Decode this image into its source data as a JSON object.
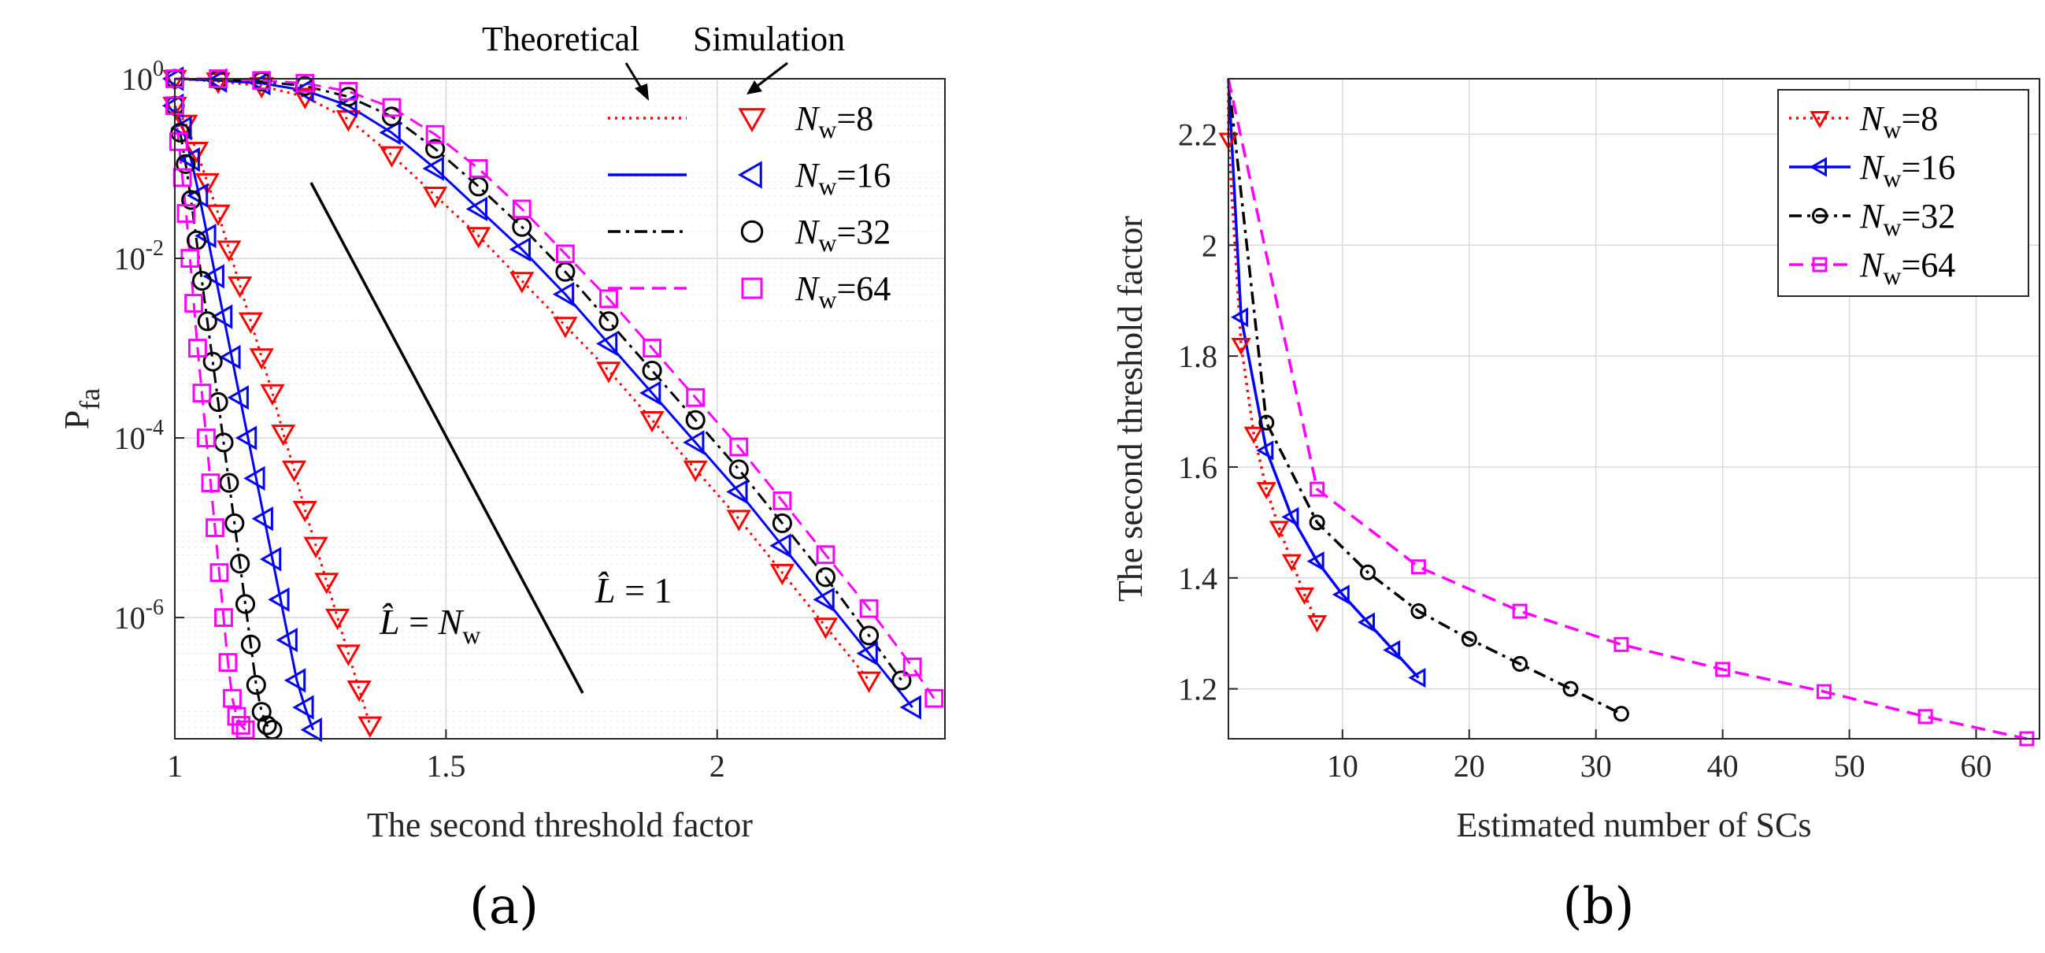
{
  "figure": {
    "panel_a_label": "(a)",
    "panel_b_label": "(b)"
  },
  "chart_data": [
    {
      "type": "line",
      "title": "",
      "xlabel": "The second threshold factor",
      "ylabel": "P",
      "ylabel_sub": "fa",
      "xlim": [
        1,
        2.42
      ],
      "ylim_log10": [
        -7.35,
        0
      ],
      "x_ticks": [
        "1",
        "1.5",
        "2"
      ],
      "x_tick_values": [
        1,
        1.5,
        2
      ],
      "y_ticks": [
        {
          "base": "10",
          "exp": "-6",
          "value": -6
        },
        {
          "base": "10",
          "exp": "-4",
          "value": -4
        },
        {
          "base": "10",
          "exp": "-2",
          "value": -2
        },
        {
          "base": "10",
          "exp": "0",
          "value": 0
        }
      ],
      "legend_header": {
        "theoretical": "Theoretical",
        "simulation": "Simulation"
      },
      "annotations": {
        "L_hat_Nw": {
          "lhs": "L̂",
          "eq": " = ",
          "rhs": "N",
          "rhs_sub": "w"
        },
        "L_hat_1": {
          "lhs": "L̂",
          "eq": " = ",
          "rhs": "1"
        }
      },
      "legend": [
        {
          "label_main": "N",
          "label_sub": "w",
          "label_tail": "=8",
          "color": "#ff0000",
          "marker": "triangle-down",
          "dash": "dotted"
        },
        {
          "label_main": "N",
          "label_sub": "w",
          "label_tail": "=16",
          "color": "#0000ff",
          "marker": "triangle-left",
          "dash": "solid"
        },
        {
          "label_main": "N",
          "label_sub": "w",
          "label_tail": "=32",
          "color": "#000000",
          "marker": "circle",
          "dash": "dashdot"
        },
        {
          "label_main": "N",
          "label_sub": "w",
          "label_tail": "=64",
          "color": "#ff00ff",
          "marker": "square",
          "dash": "dashed"
        }
      ],
      "series": [
        {
          "name": "Lhat=Nw, Nw=8",
          "group": "Lhat=Nw",
          "color": "#ff0000",
          "marker": "triangle-down",
          "dash": "dotted",
          "x": [
            1.0,
            1.02,
            1.04,
            1.06,
            1.08,
            1.1,
            1.12,
            1.14,
            1.16,
            1.18,
            1.2,
            1.22,
            1.24,
            1.26,
            1.28,
            1.3,
            1.32,
            1.34,
            1.36
          ],
          "log10y": [
            -0.3,
            -0.5,
            -0.8,
            -1.15,
            -1.5,
            -1.9,
            -2.3,
            -2.7,
            -3.1,
            -3.5,
            -3.95,
            -4.35,
            -4.8,
            -5.2,
            -5.6,
            -6.0,
            -6.4,
            -6.8,
            -7.2
          ]
        },
        {
          "name": "Lhat=Nw, Nw=16",
          "group": "Lhat=Nw",
          "color": "#0000ff",
          "marker": "triangle-left",
          "dash": "solid",
          "x": [
            1.0,
            1.015,
            1.03,
            1.045,
            1.06,
            1.075,
            1.09,
            1.105,
            1.12,
            1.135,
            1.15,
            1.165,
            1.18,
            1.195,
            1.21,
            1.225,
            1.24,
            1.255
          ],
          "log10y": [
            -0.3,
            -0.55,
            -0.9,
            -1.3,
            -1.75,
            -2.2,
            -2.65,
            -3.1,
            -3.55,
            -4.0,
            -4.45,
            -4.9,
            -5.35,
            -5.8,
            -6.25,
            -6.7,
            -7.0,
            -7.25
          ]
        },
        {
          "name": "Lhat=Nw, Nw=32",
          "group": "Lhat=Nw",
          "color": "#000000",
          "marker": "circle",
          "dash": "dashdot",
          "x": [
            1.0,
            1.01,
            1.02,
            1.03,
            1.04,
            1.05,
            1.06,
            1.07,
            1.08,
            1.09,
            1.1,
            1.11,
            1.12,
            1.13,
            1.14,
            1.15,
            1.16,
            1.17,
            1.18
          ],
          "log10y": [
            -0.3,
            -0.6,
            -0.95,
            -1.35,
            -1.8,
            -2.25,
            -2.7,
            -3.15,
            -3.6,
            -4.05,
            -4.5,
            -4.95,
            -5.4,
            -5.85,
            -6.3,
            -6.75,
            -7.05,
            -7.2,
            -7.25
          ]
        },
        {
          "name": "Lhat=Nw, Nw=64",
          "group": "Lhat=Nw",
          "color": "#ff00ff",
          "marker": "square",
          "dash": "dashed",
          "x": [
            1.0,
            1.007,
            1.014,
            1.021,
            1.028,
            1.035,
            1.042,
            1.05,
            1.058,
            1.066,
            1.074,
            1.082,
            1.09,
            1.098,
            1.106,
            1.114,
            1.122,
            1.13
          ],
          "log10y": [
            -0.3,
            -0.7,
            -1.1,
            -1.5,
            -2.0,
            -2.5,
            -3.0,
            -3.5,
            -4.0,
            -4.5,
            -5.0,
            -5.5,
            -6.0,
            -6.5,
            -6.9,
            -7.1,
            -7.2,
            -7.25
          ]
        },
        {
          "name": "Lhat=1, Nw=8",
          "group": "Lhat=1",
          "color": "#ff0000",
          "marker": "triangle-down",
          "dash": "dotted",
          "x": [
            1.0,
            1.08,
            1.16,
            1.24,
            1.32,
            1.4,
            1.48,
            1.56,
            1.64,
            1.72,
            1.8,
            1.88,
            1.96,
            2.04,
            2.12,
            2.2,
            2.28
          ],
          "log10y": [
            0.0,
            -0.03,
            -0.08,
            -0.2,
            -0.45,
            -0.85,
            -1.3,
            -1.75,
            -2.25,
            -2.75,
            -3.25,
            -3.8,
            -4.35,
            -4.9,
            -5.5,
            -6.1,
            -6.7
          ]
        },
        {
          "name": "Lhat=1, Nw=16",
          "group": "Lhat=1",
          "color": "#0000ff",
          "marker": "triangle-left",
          "dash": "solid",
          "x": [
            1.0,
            1.08,
            1.16,
            1.24,
            1.32,
            1.4,
            1.48,
            1.56,
            1.64,
            1.72,
            1.8,
            1.88,
            1.96,
            2.04,
            2.12,
            2.2,
            2.28,
            2.36
          ],
          "log10y": [
            0.0,
            -0.02,
            -0.05,
            -0.13,
            -0.3,
            -0.6,
            -1.0,
            -1.45,
            -1.9,
            -2.4,
            -2.95,
            -3.5,
            -4.05,
            -4.6,
            -5.2,
            -5.8,
            -6.4,
            -7.0
          ]
        },
        {
          "name": "Lhat=1, Nw=32",
          "group": "Lhat=1",
          "color": "#000000",
          "marker": "circle",
          "dash": "dashdot",
          "x": [
            1.0,
            1.08,
            1.16,
            1.24,
            1.32,
            1.4,
            1.48,
            1.56,
            1.64,
            1.72,
            1.8,
            1.88,
            1.96,
            2.04,
            2.12,
            2.2,
            2.28,
            2.34
          ],
          "log10y": [
            0.0,
            -0.01,
            -0.03,
            -0.08,
            -0.2,
            -0.42,
            -0.78,
            -1.2,
            -1.65,
            -2.15,
            -2.7,
            -3.25,
            -3.8,
            -4.35,
            -4.95,
            -5.55,
            -6.2,
            -6.7
          ]
        },
        {
          "name": "Lhat=1, Nw=64",
          "group": "Lhat=1",
          "color": "#ff00ff",
          "marker": "square",
          "dash": "dashed",
          "x": [
            1.0,
            1.08,
            1.16,
            1.24,
            1.32,
            1.4,
            1.48,
            1.56,
            1.64,
            1.72,
            1.8,
            1.88,
            1.96,
            2.04,
            2.12,
            2.2,
            2.28,
            2.36,
            2.4
          ],
          "log10y": [
            0.0,
            0.0,
            -0.02,
            -0.05,
            -0.14,
            -0.32,
            -0.62,
            -1.0,
            -1.45,
            -1.95,
            -2.45,
            -3.0,
            -3.55,
            -4.1,
            -4.7,
            -5.3,
            -5.9,
            -6.55,
            -6.9
          ]
        }
      ]
    },
    {
      "type": "line",
      "title": "",
      "xlabel": "Estimated number of SCs",
      "ylabel": "The second threshold factor",
      "xlim": [
        1,
        65
      ],
      "ylim": [
        1.11,
        2.3
      ],
      "x_ticks": [
        "10",
        "20",
        "30",
        "40",
        "50",
        "60"
      ],
      "x_tick_values": [
        10,
        20,
        30,
        40,
        50,
        60
      ],
      "y_ticks": [
        "1.2",
        "1.4",
        "1.6",
        "1.8",
        "2",
        "2.2"
      ],
      "y_tick_values": [
        1.2,
        1.4,
        1.6,
        1.8,
        2.0,
        2.2
      ],
      "legend": [
        {
          "label_main": "N",
          "label_sub": "w",
          "label_tail": "=8",
          "color": "#ff0000",
          "marker": "triangle-down",
          "dash": "dotted"
        },
        {
          "label_main": "N",
          "label_sub": "w",
          "label_tail": "=16",
          "color": "#0000ff",
          "marker": "triangle-left",
          "dash": "solid"
        },
        {
          "label_main": "N",
          "label_sub": "w",
          "label_tail": "=32",
          "color": "#000000",
          "marker": "circle",
          "dash": "dashdot"
        },
        {
          "label_main": "N",
          "label_sub": "w",
          "label_tail": "=64",
          "color": "#ff00ff",
          "marker": "square",
          "dash": "dashed"
        }
      ],
      "series": [
        {
          "name": "Nw=8",
          "color": "#ff0000",
          "marker": "triangle-down",
          "dash": "dotted",
          "x": [
            1,
            2,
            3,
            4,
            5,
            6,
            7,
            8
          ],
          "y": [
            2.19,
            1.82,
            1.66,
            1.56,
            1.49,
            1.43,
            1.37,
            1.32
          ]
        },
        {
          "name": "Nw=16",
          "color": "#0000ff",
          "marker": "triangle-left",
          "dash": "solid",
          "x": [
            2,
            4,
            6,
            8,
            10,
            12,
            14,
            16
          ],
          "y": [
            1.87,
            1.63,
            1.51,
            1.43,
            1.37,
            1.32,
            1.27,
            1.22
          ]
        },
        {
          "name": "Nw=32",
          "color": "#000000",
          "marker": "circle",
          "dash": "dashdot",
          "x": [
            4,
            8,
            12,
            16,
            20,
            24,
            28,
            32
          ],
          "y": [
            1.68,
            1.5,
            1.41,
            1.34,
            1.29,
            1.245,
            1.2,
            1.155
          ]
        },
        {
          "name": "Nw=64",
          "color": "#ff00ff",
          "marker": "square",
          "dash": "dashed",
          "x": [
            8,
            16,
            24,
            32,
            40,
            48,
            56,
            64
          ],
          "y": [
            1.56,
            1.42,
            1.34,
            1.28,
            1.235,
            1.195,
            1.15,
            1.11
          ]
        }
      ]
    }
  ]
}
